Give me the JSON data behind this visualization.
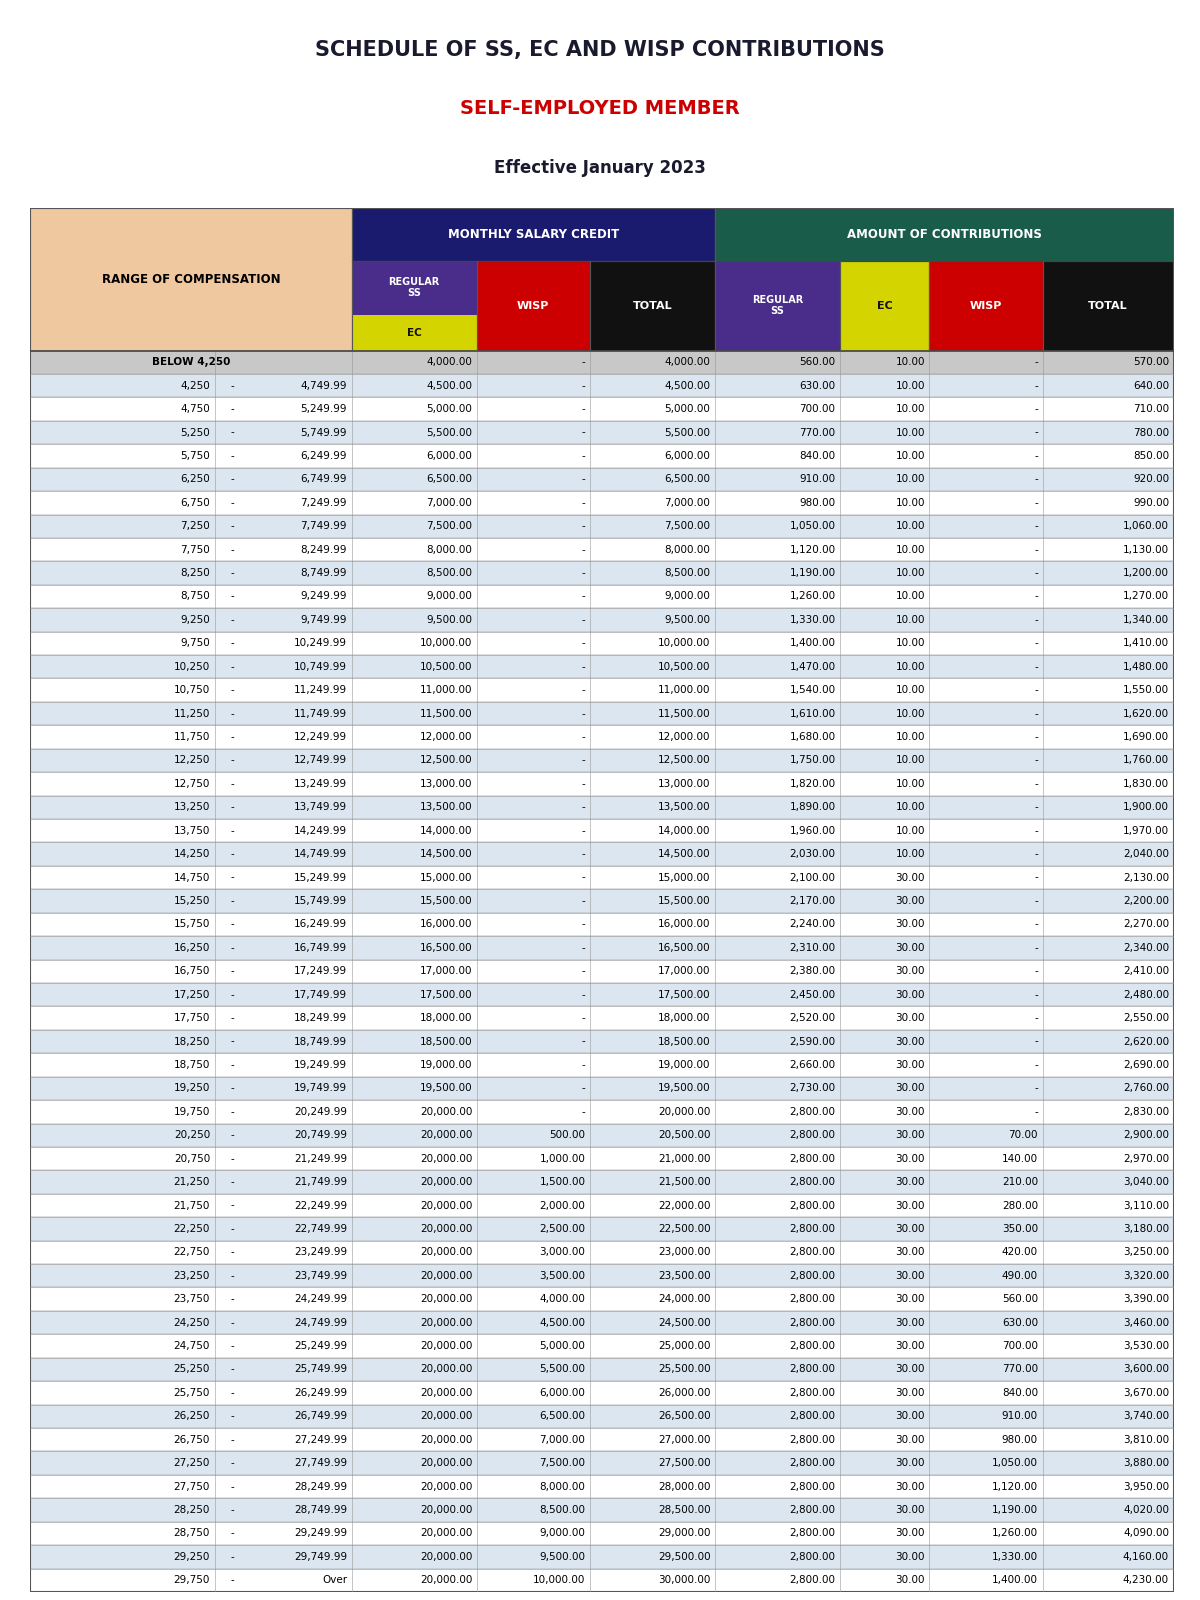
{
  "title1": "SCHEDULE OF SS, EC AND WISP CONTRIBUTIONS",
  "title2": "SELF-EMPLOYED MEMBER",
  "title3": "Effective January 2023",
  "title1_color": "#1a1a2e",
  "title2_color": "#cc0000",
  "title3_color": "#1a1a2e",
  "header_monthly_color": "#1a1a6e",
  "header_amount_color": "#1a5c4a",
  "header_reg_ss_purple": "#4a2c8a",
  "header_wisp_red": "#cc0000",
  "header_total_black": "#111111",
  "header_ec_yellow": "#d4d400",
  "header_comp_color": "#f0c8a0",
  "rows": [
    [
      "BELOW 4,250",
      "",
      "4,000.00",
      "-",
      "4,000.00",
      "560.00",
      "10.00",
      "-",
      "570.00"
    ],
    [
      "4,250",
      "4,749.99",
      "4,500.00",
      "-",
      "4,500.00",
      "630.00",
      "10.00",
      "-",
      "640.00"
    ],
    [
      "4,750",
      "5,249.99",
      "5,000.00",
      "-",
      "5,000.00",
      "700.00",
      "10.00",
      "-",
      "710.00"
    ],
    [
      "5,250",
      "5,749.99",
      "5,500.00",
      "-",
      "5,500.00",
      "770.00",
      "10.00",
      "-",
      "780.00"
    ],
    [
      "5,750",
      "6,249.99",
      "6,000.00",
      "-",
      "6,000.00",
      "840.00",
      "10.00",
      "-",
      "850.00"
    ],
    [
      "6,250",
      "6,749.99",
      "6,500.00",
      "-",
      "6,500.00",
      "910.00",
      "10.00",
      "-",
      "920.00"
    ],
    [
      "6,750",
      "7,249.99",
      "7,000.00",
      "-",
      "7,000.00",
      "980.00",
      "10.00",
      "-",
      "990.00"
    ],
    [
      "7,250",
      "7,749.99",
      "7,500.00",
      "-",
      "7,500.00",
      "1,050.00",
      "10.00",
      "-",
      "1,060.00"
    ],
    [
      "7,750",
      "8,249.99",
      "8,000.00",
      "-",
      "8,000.00",
      "1,120.00",
      "10.00",
      "-",
      "1,130.00"
    ],
    [
      "8,250",
      "8,749.99",
      "8,500.00",
      "-",
      "8,500.00",
      "1,190.00",
      "10.00",
      "-",
      "1,200.00"
    ],
    [
      "8,750",
      "9,249.99",
      "9,000.00",
      "-",
      "9,000.00",
      "1,260.00",
      "10.00",
      "-",
      "1,270.00"
    ],
    [
      "9,250",
      "9,749.99",
      "9,500.00",
      "-",
      "9,500.00",
      "1,330.00",
      "10.00",
      "-",
      "1,340.00"
    ],
    [
      "9,750",
      "10,249.99",
      "10,000.00",
      "-",
      "10,000.00",
      "1,400.00",
      "10.00",
      "-",
      "1,410.00"
    ],
    [
      "10,250",
      "10,749.99",
      "10,500.00",
      "-",
      "10,500.00",
      "1,470.00",
      "10.00",
      "-",
      "1,480.00"
    ],
    [
      "10,750",
      "11,249.99",
      "11,000.00",
      "-",
      "11,000.00",
      "1,540.00",
      "10.00",
      "-",
      "1,550.00"
    ],
    [
      "11,250",
      "11,749.99",
      "11,500.00",
      "-",
      "11,500.00",
      "1,610.00",
      "10.00",
      "-",
      "1,620.00"
    ],
    [
      "11,750",
      "12,249.99",
      "12,000.00",
      "-",
      "12,000.00",
      "1,680.00",
      "10.00",
      "-",
      "1,690.00"
    ],
    [
      "12,250",
      "12,749.99",
      "12,500.00",
      "-",
      "12,500.00",
      "1,750.00",
      "10.00",
      "-",
      "1,760.00"
    ],
    [
      "12,750",
      "13,249.99",
      "13,000.00",
      "-",
      "13,000.00",
      "1,820.00",
      "10.00",
      "-",
      "1,830.00"
    ],
    [
      "13,250",
      "13,749.99",
      "13,500.00",
      "-",
      "13,500.00",
      "1,890.00",
      "10.00",
      "-",
      "1,900.00"
    ],
    [
      "13,750",
      "14,249.99",
      "14,000.00",
      "-",
      "14,000.00",
      "1,960.00",
      "10.00",
      "-",
      "1,970.00"
    ],
    [
      "14,250",
      "14,749.99",
      "14,500.00",
      "-",
      "14,500.00",
      "2,030.00",
      "10.00",
      "-",
      "2,040.00"
    ],
    [
      "14,750",
      "15,249.99",
      "15,000.00",
      "-",
      "15,000.00",
      "2,100.00",
      "30.00",
      "-",
      "2,130.00"
    ],
    [
      "15,250",
      "15,749.99",
      "15,500.00",
      "-",
      "15,500.00",
      "2,170.00",
      "30.00",
      "-",
      "2,200.00"
    ],
    [
      "15,750",
      "16,249.99",
      "16,000.00",
      "-",
      "16,000.00",
      "2,240.00",
      "30.00",
      "-",
      "2,270.00"
    ],
    [
      "16,250",
      "16,749.99",
      "16,500.00",
      "-",
      "16,500.00",
      "2,310.00",
      "30.00",
      "-",
      "2,340.00"
    ],
    [
      "16,750",
      "17,249.99",
      "17,000.00",
      "-",
      "17,000.00",
      "2,380.00",
      "30.00",
      "-",
      "2,410.00"
    ],
    [
      "17,250",
      "17,749.99",
      "17,500.00",
      "-",
      "17,500.00",
      "2,450.00",
      "30.00",
      "-",
      "2,480.00"
    ],
    [
      "17,750",
      "18,249.99",
      "18,000.00",
      "-",
      "18,000.00",
      "2,520.00",
      "30.00",
      "-",
      "2,550.00"
    ],
    [
      "18,250",
      "18,749.99",
      "18,500.00",
      "-",
      "18,500.00",
      "2,590.00",
      "30.00",
      "-",
      "2,620.00"
    ],
    [
      "18,750",
      "19,249.99",
      "19,000.00",
      "-",
      "19,000.00",
      "2,660.00",
      "30.00",
      "-",
      "2,690.00"
    ],
    [
      "19,250",
      "19,749.99",
      "19,500.00",
      "-",
      "19,500.00",
      "2,730.00",
      "30.00",
      "-",
      "2,760.00"
    ],
    [
      "19,750",
      "20,249.99",
      "20,000.00",
      "-",
      "20,000.00",
      "2,800.00",
      "30.00",
      "-",
      "2,830.00"
    ],
    [
      "20,250",
      "20,749.99",
      "20,000.00",
      "500.00",
      "20,500.00",
      "2,800.00",
      "30.00",
      "70.00",
      "2,900.00"
    ],
    [
      "20,750",
      "21,249.99",
      "20,000.00",
      "1,000.00",
      "21,000.00",
      "2,800.00",
      "30.00",
      "140.00",
      "2,970.00"
    ],
    [
      "21,250",
      "21,749.99",
      "20,000.00",
      "1,500.00",
      "21,500.00",
      "2,800.00",
      "30.00",
      "210.00",
      "3,040.00"
    ],
    [
      "21,750",
      "22,249.99",
      "20,000.00",
      "2,000.00",
      "22,000.00",
      "2,800.00",
      "30.00",
      "280.00",
      "3,110.00"
    ],
    [
      "22,250",
      "22,749.99",
      "20,000.00",
      "2,500.00",
      "22,500.00",
      "2,800.00",
      "30.00",
      "350.00",
      "3,180.00"
    ],
    [
      "22,750",
      "23,249.99",
      "20,000.00",
      "3,000.00",
      "23,000.00",
      "2,800.00",
      "30.00",
      "420.00",
      "3,250.00"
    ],
    [
      "23,250",
      "23,749.99",
      "20,000.00",
      "3,500.00",
      "23,500.00",
      "2,800.00",
      "30.00",
      "490.00",
      "3,320.00"
    ],
    [
      "23,750",
      "24,249.99",
      "20,000.00",
      "4,000.00",
      "24,000.00",
      "2,800.00",
      "30.00",
      "560.00",
      "3,390.00"
    ],
    [
      "24,250",
      "24,749.99",
      "20,000.00",
      "4,500.00",
      "24,500.00",
      "2,800.00",
      "30.00",
      "630.00",
      "3,460.00"
    ],
    [
      "24,750",
      "25,249.99",
      "20,000.00",
      "5,000.00",
      "25,000.00",
      "2,800.00",
      "30.00",
      "700.00",
      "3,530.00"
    ],
    [
      "25,250",
      "25,749.99",
      "20,000.00",
      "5,500.00",
      "25,500.00",
      "2,800.00",
      "30.00",
      "770.00",
      "3,600.00"
    ],
    [
      "25,750",
      "26,249.99",
      "20,000.00",
      "6,000.00",
      "26,000.00",
      "2,800.00",
      "30.00",
      "840.00",
      "3,670.00"
    ],
    [
      "26,250",
      "26,749.99",
      "20,000.00",
      "6,500.00",
      "26,500.00",
      "2,800.00",
      "30.00",
      "910.00",
      "3,740.00"
    ],
    [
      "26,750",
      "27,249.99",
      "20,000.00",
      "7,000.00",
      "27,000.00",
      "2,800.00",
      "30.00",
      "980.00",
      "3,810.00"
    ],
    [
      "27,250",
      "27,749.99",
      "20,000.00",
      "7,500.00",
      "27,500.00",
      "2,800.00",
      "30.00",
      "1,050.00",
      "3,880.00"
    ],
    [
      "27,750",
      "28,249.99",
      "20,000.00",
      "8,000.00",
      "28,000.00",
      "2,800.00",
      "30.00",
      "1,120.00",
      "3,950.00"
    ],
    [
      "28,250",
      "28,749.99",
      "20,000.00",
      "8,500.00",
      "28,500.00",
      "2,800.00",
      "30.00",
      "1,190.00",
      "4,020.00"
    ],
    [
      "28,750",
      "29,249.99",
      "20,000.00",
      "9,000.00",
      "29,000.00",
      "2,800.00",
      "30.00",
      "1,260.00",
      "4,090.00"
    ],
    [
      "29,250",
      "29,749.99",
      "20,000.00",
      "9,500.00",
      "29,500.00",
      "2,800.00",
      "30.00",
      "1,330.00",
      "4,160.00"
    ],
    [
      "29,750",
      "Over",
      "20,000.00",
      "10,000.00",
      "30,000.00",
      "2,800.00",
      "30.00",
      "1,400.00",
      "4,230.00"
    ]
  ],
  "below_row_color": "#c8c8c8",
  "odd_row_color": "#ffffff",
  "even_row_color": "#dce6f0",
  "border_color": "#888888",
  "fig_bg": "#e8e8e8"
}
